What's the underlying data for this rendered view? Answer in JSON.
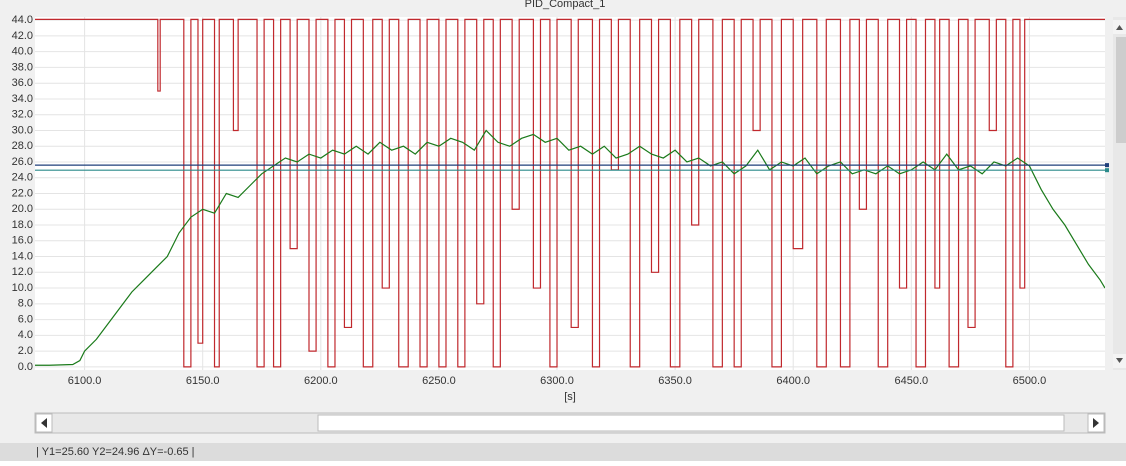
{
  "chart_data": {
    "type": "line",
    "title": "PID_Compact_1",
    "x_label": "[s]",
    "status": "| Y1=25.60  Y2=24.96  ΔY=-0.65 |",
    "xlim": [
      6079,
      6532
    ],
    "ylim": [
      -0.4,
      44.4
    ],
    "grid": true,
    "xticks": [
      {
        "value": 6100,
        "label": "6100.0"
      },
      {
        "value": 6150,
        "label": "6150.0"
      },
      {
        "value": 6200,
        "label": "6200.0"
      },
      {
        "value": 6250,
        "label": "6250.0"
      },
      {
        "value": 6300,
        "label": "6300.0"
      },
      {
        "value": 6350,
        "label": "6350.0"
      },
      {
        "value": 6400,
        "label": "6400.0"
      },
      {
        "value": 6450,
        "label": "6450.0"
      },
      {
        "value": 6500,
        "label": "6500.0"
      }
    ],
    "yticks": [
      {
        "value": 0,
        "label": "0.0"
      },
      {
        "value": 2,
        "label": "2.0"
      },
      {
        "value": 4,
        "label": "4.0"
      },
      {
        "value": 6,
        "label": "6.0"
      },
      {
        "value": 8,
        "label": "8.0"
      },
      {
        "value": 10,
        "label": "10.0"
      },
      {
        "value": 12,
        "label": "12.0"
      },
      {
        "value": 14,
        "label": "14.0"
      },
      {
        "value": 16,
        "label": "16.0"
      },
      {
        "value": 18,
        "label": "18.0"
      },
      {
        "value": 20,
        "label": "20.0"
      },
      {
        "value": 22,
        "label": "22.0"
      },
      {
        "value": 24,
        "label": "24.0"
      },
      {
        "value": 26,
        "label": "26.0"
      },
      {
        "value": 28,
        "label": "28.0"
      },
      {
        "value": 30,
        "label": "30.0"
      },
      {
        "value": 32,
        "label": "32.0"
      },
      {
        "value": 34,
        "label": "34.0"
      },
      {
        "value": 36,
        "label": "36.0"
      },
      {
        "value": 38,
        "label": "38.0"
      },
      {
        "value": 40,
        "label": "40.0"
      },
      {
        "value": 42,
        "label": "42.0"
      },
      {
        "value": 44,
        "label": "44.0"
      }
    ],
    "cursors": [
      {
        "value": 25.6,
        "color": "#1f3f7a"
      },
      {
        "value": 24.96,
        "color": "#2a8a8a"
      }
    ],
    "series": [
      {
        "color": "#c0282d",
        "step": true,
        "x": [
          6079,
          6131,
          6132,
          6142,
          6145,
          6148,
          6150,
          6155,
          6157,
          6163,
          6165,
          6173,
          6176,
          6180,
          6183,
          6187,
          6190,
          6195,
          6198,
          6203,
          6206,
          6210,
          6213,
          6218,
          6222,
          6226,
          6229,
          6233,
          6237,
          6242,
          6245,
          6250,
          6253,
          6258,
          6261,
          6266,
          6269,
          6273,
          6276,
          6281,
          6284,
          6290,
          6293,
          6297,
          6300,
          6306,
          6309,
          6315,
          6318,
          6323,
          6326,
          6331,
          6335,
          6340,
          6343,
          6348,
          6352,
          6357,
          6360,
          6366,
          6370,
          6375,
          6378,
          6383,
          6386,
          6391,
          6395,
          6400,
          6404,
          6410,
          6414,
          6420,
          6424,
          6428,
          6431,
          6436,
          6440,
          6445,
          6448,
          6452,
          6456,
          6460,
          6462,
          6466,
          6470,
          6474,
          6477,
          6483,
          6486,
          6490,
          6493,
          6496,
          6498,
          6532
        ],
        "values": [
          44.1,
          35,
          44.1,
          0,
          44.1,
          3,
          44.1,
          0,
          44.1,
          30,
          44.1,
          0,
          44.1,
          0,
          44.1,
          15,
          44.1,
          2,
          44.1,
          0,
          44.1,
          5,
          44.1,
          0,
          44.1,
          10,
          44.1,
          0,
          44.1,
          0,
          44.1,
          0,
          44.1,
          0,
          44.1,
          8,
          44.1,
          0,
          44.1,
          20,
          44.1,
          10,
          44.1,
          0,
          44.1,
          5,
          44.1,
          0,
          44.1,
          25,
          44.1,
          0,
          44.1,
          12,
          44.1,
          0,
          44.1,
          18,
          44.1,
          0,
          44.1,
          0,
          44.1,
          30,
          44.1,
          0,
          44.1,
          15,
          44.1,
          0,
          44.1,
          0,
          44.1,
          20,
          44.1,
          0,
          44.1,
          10,
          44.1,
          0,
          44.1,
          10,
          44.1,
          0,
          44.1,
          5,
          44.1,
          30,
          44.1,
          0,
          44.1,
          10,
          44.1,
          44.1
        ]
      },
      {
        "color": "#1a7a1a",
        "x": [
          6079,
          6085,
          6095,
          6098,
          6100,
          6105,
          6110,
          6115,
          6120,
          6125,
          6130,
          6135,
          6140,
          6145,
          6150,
          6155,
          6160,
          6165,
          6170,
          6175,
          6180,
          6185,
          6190,
          6195,
          6200,
          6205,
          6210,
          6215,
          6220,
          6225,
          6230,
          6235,
          6240,
          6245,
          6250,
          6255,
          6260,
          6265,
          6270,
          6275,
          6280,
          6285,
          6290,
          6295,
          6300,
          6305,
          6310,
          6315,
          6320,
          6325,
          6330,
          6335,
          6340,
          6345,
          6350,
          6355,
          6360,
          6365,
          6370,
          6375,
          6380,
          6385,
          6390,
          6395,
          6400,
          6405,
          6410,
          6415,
          6420,
          6425,
          6430,
          6435,
          6440,
          6445,
          6450,
          6455,
          6460,
          6465,
          6470,
          6475,
          6480,
          6485,
          6490,
          6495,
          6500,
          6505,
          6510,
          6515,
          6520,
          6525,
          6530,
          6532
        ],
        "values": [
          0.2,
          0.2,
          0.3,
          0.8,
          2,
          3.5,
          5.5,
          7.5,
          9.5,
          11,
          12.5,
          14,
          17,
          19,
          20,
          19.5,
          22,
          21.5,
          23,
          24.5,
          25.5,
          26.5,
          26,
          27,
          26.5,
          27.5,
          27,
          28,
          27,
          28.5,
          27.5,
          28,
          27,
          28.5,
          28,
          29,
          28.5,
          27.5,
          30,
          28.5,
          28,
          29,
          29.5,
          28.5,
          29,
          27.5,
          28,
          27,
          28,
          26.5,
          27,
          28,
          27,
          26.5,
          27.5,
          26,
          26.5,
          25.5,
          26,
          24.5,
          25.5,
          27.5,
          25,
          26,
          25.5,
          26.5,
          24.5,
          25.5,
          26,
          24.5,
          25,
          24.5,
          25.5,
          24.5,
          25,
          26,
          25,
          27,
          25,
          25.5,
          24.5,
          26,
          25.5,
          26.5,
          25.5,
          22.5,
          20,
          18,
          15.5,
          13,
          11,
          10
        ]
      }
    ]
  }
}
